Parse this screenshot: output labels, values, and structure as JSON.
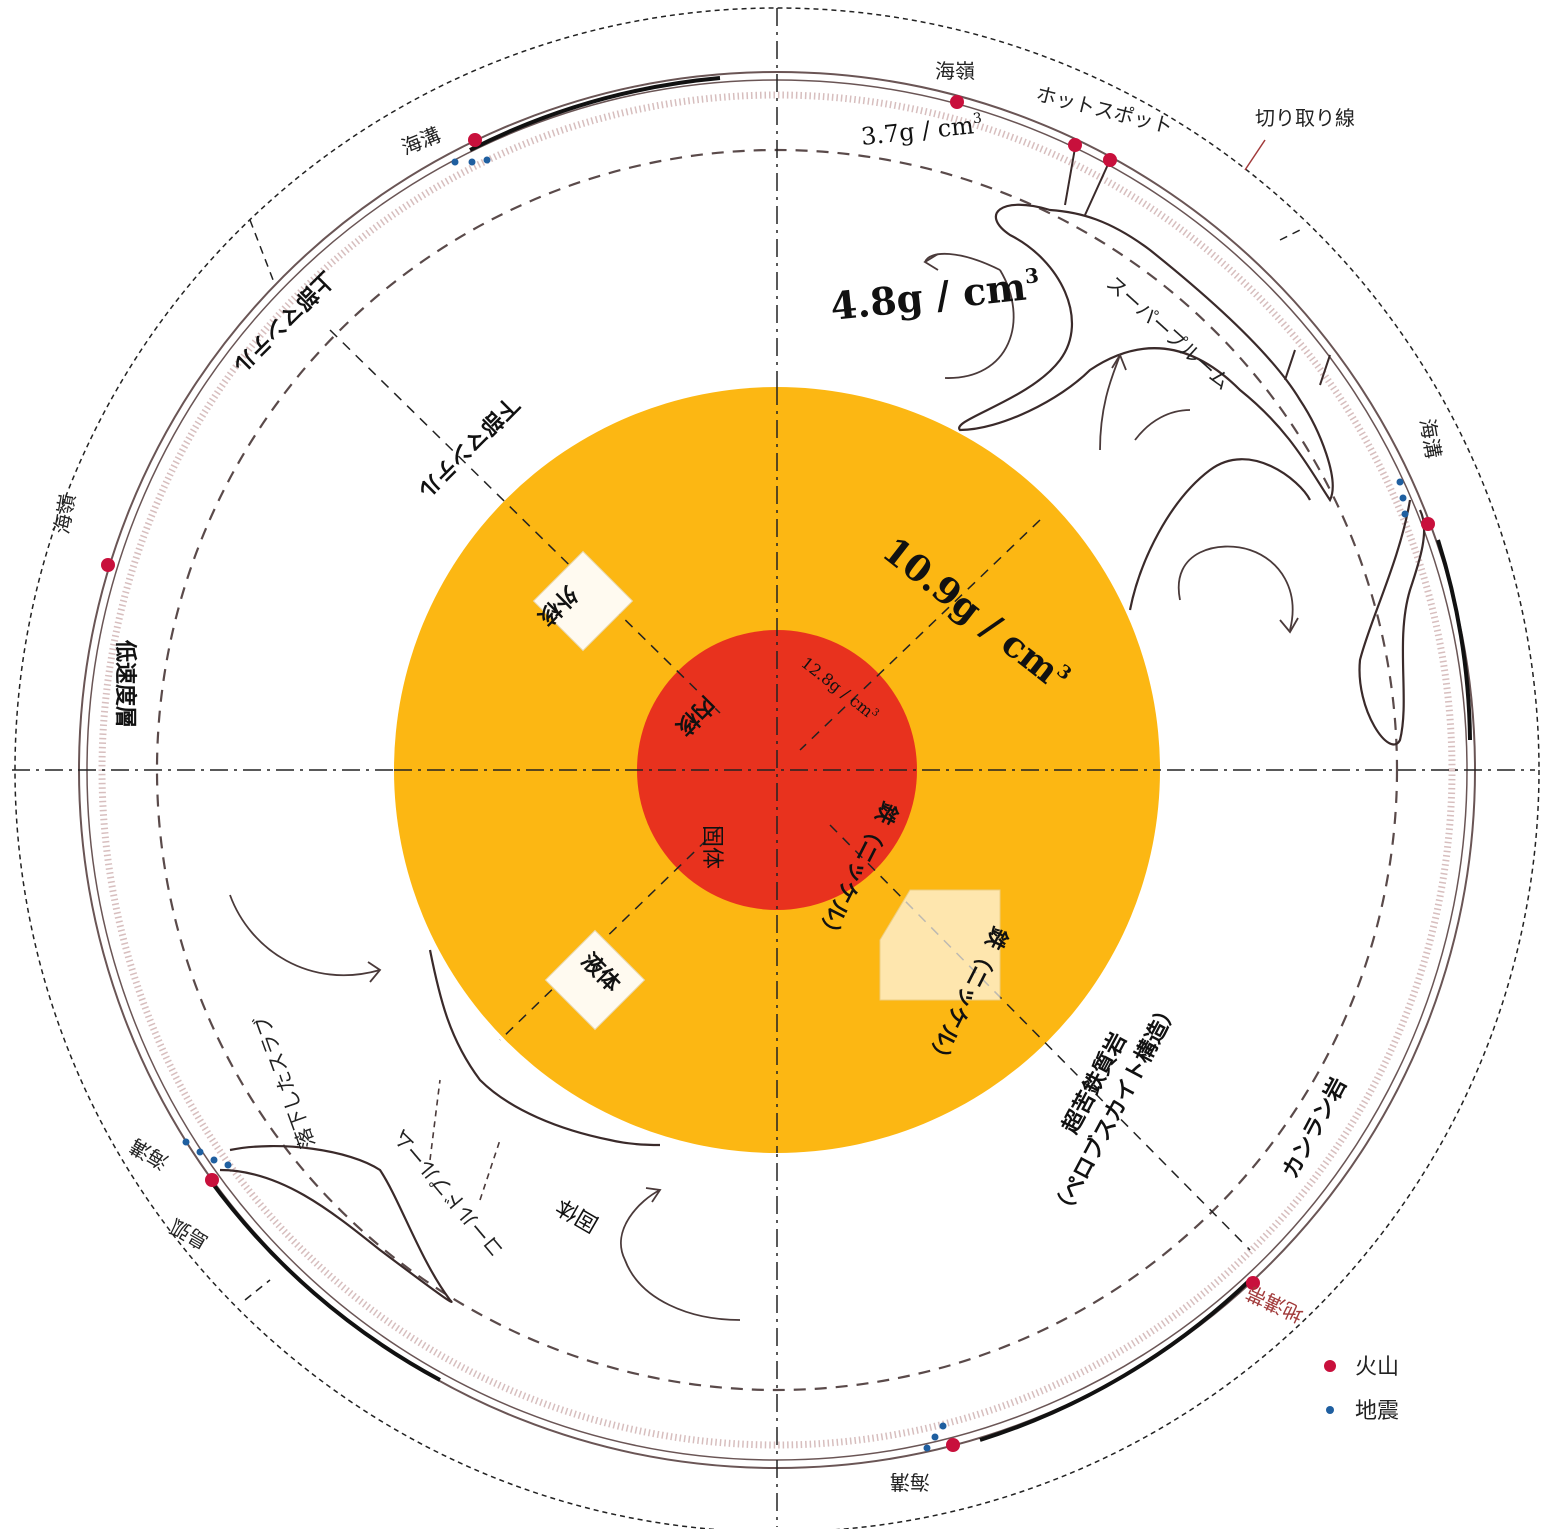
{
  "labels": {
    "cut_line": "切り取り線",
    "hotspot": "ホットスポット",
    "superplume": "スーパープルーム",
    "upper_mantle": "上部マンテル",
    "lower_mantle": "下部マンテル",
    "low_velocity_layer": "低速度層",
    "outer_core": "外核",
    "inner_core": "内核",
    "liquid": "液体",
    "solid_core": "固体",
    "solid_mantle": "固体",
    "iron_nickel_inner": "鉄（ニッケル）",
    "iron_nickel_outer": "鉄（ニッケル）",
    "ultramafic": "超苦鉄質岩",
    "perovskite": "（ペロブスカイト構造）",
    "olivine": "カンラン岩",
    "cold_plume": "コールドプルーム",
    "sunk_slab": "落下したスラブ",
    "trench_1": "海溝",
    "trench_2": "海溝",
    "trench_3": "海溝",
    "trench_4": "海溝",
    "ridge_1": "海嶺",
    "ridge_2": "海嶺",
    "island_arc": "島弧",
    "rift_zone": "地溝帯"
  },
  "density": {
    "d1": "3.7g / cm",
    "d1_exp": "3",
    "d2": "4.8g / cm",
    "d2_exp": "3",
    "d3": "10.9g / cm",
    "d3_exp": "3",
    "d4": "12.8g / cm",
    "d4_exp": "3"
  },
  "legend": {
    "volcano": "火山",
    "earthquake": "地震",
    "volcano_color": "#c8103c",
    "earthquake_color": "#1f5fa0"
  },
  "colors": {
    "outer_core": "#fcb713",
    "inner_core": "#e8321e",
    "line": "#5a4a4a"
  }
}
